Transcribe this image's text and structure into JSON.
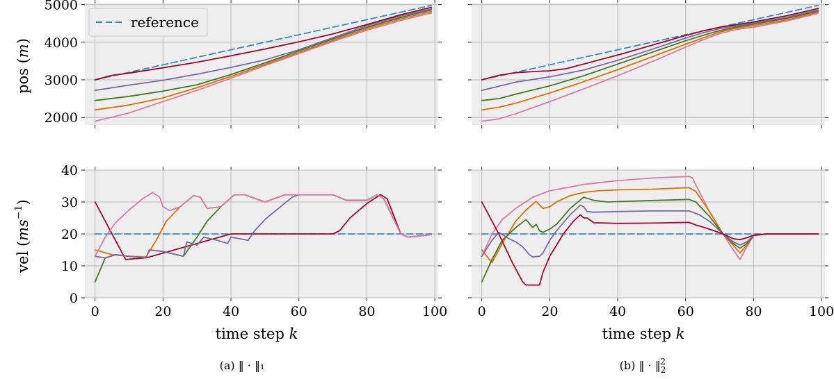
{
  "colors": {
    "panel_bg": "#eeeeee",
    "grid": "#b9b9b9",
    "reference": "#348abd",
    "purple": "#7a68a6",
    "green": "#467821",
    "orange": "#e07000",
    "pink": "#d77ba8",
    "red": "#a60628"
  },
  "legend": {
    "entry": "reference"
  },
  "captions": {
    "a": "(a) ‖ · ‖₁",
    "b": "(b) ‖ · ‖²₂"
  },
  "chart_data": [
    {
      "id": "a-pos",
      "type": "line",
      "panel": "top-left",
      "title": "",
      "xlabel": "",
      "ylabel": "pos (m)",
      "xlim": [
        -3,
        101
      ],
      "ylim": [
        1800,
        5050
      ],
      "xticks": [
        0,
        20,
        40,
        60,
        80,
        100
      ],
      "xticklabels": [],
      "yticks": [
        2000,
        3000,
        4000,
        5000
      ],
      "yticklabels": [
        "2000",
        "3000",
        "4000",
        "5000"
      ],
      "grid": true,
      "legend": "top-left",
      "series": [
        {
          "name": "reference",
          "color": "reference",
          "dashed": true,
          "x": [
            0,
            99
          ],
          "y": [
            3000,
            4980
          ]
        },
        {
          "color": "pink",
          "x": [
            0,
            10,
            20,
            30,
            40,
            50,
            60,
            70,
            80,
            90,
            99
          ],
          "y": [
            1900,
            2120,
            2420,
            2720,
            3040,
            3380,
            3700,
            4020,
            4320,
            4580,
            4780
          ]
        },
        {
          "color": "orange",
          "x": [
            0,
            10,
            20,
            30,
            40,
            50,
            60,
            70,
            80,
            90,
            99
          ],
          "y": [
            2200,
            2330,
            2520,
            2790,
            3090,
            3410,
            3730,
            4050,
            4360,
            4620,
            4820
          ]
        },
        {
          "color": "green",
          "x": [
            0,
            10,
            20,
            30,
            40,
            50,
            60,
            70,
            80,
            90,
            99
          ],
          "y": [
            2450,
            2560,
            2700,
            2870,
            3140,
            3450,
            3770,
            4090,
            4400,
            4660,
            4860
          ]
        },
        {
          "color": "purple",
          "x": [
            0,
            10,
            20,
            30,
            40,
            50,
            60,
            70,
            80,
            90,
            99
          ],
          "y": [
            2720,
            2860,
            2990,
            3150,
            3330,
            3530,
            3800,
            4120,
            4440,
            4700,
            4890
          ]
        },
        {
          "color": "red",
          "x": [
            0,
            5,
            10,
            20,
            30,
            40,
            50,
            60,
            70,
            80,
            90,
            99
          ],
          "y": [
            3000,
            3120,
            3180,
            3320,
            3470,
            3640,
            3820,
            4010,
            4220,
            4470,
            4730,
            4930
          ]
        }
      ]
    },
    {
      "id": "b-pos",
      "type": "line",
      "panel": "top-right",
      "title": "",
      "xlabel": "",
      "ylabel": "",
      "xlim": [
        -3,
        101
      ],
      "ylim": [
        1800,
        5050
      ],
      "xticks": [
        0,
        20,
        40,
        60,
        80,
        100
      ],
      "xticklabels": [],
      "yticks": [
        2000,
        3000,
        4000,
        5000
      ],
      "yticklabels": [],
      "grid": true,
      "series": [
        {
          "name": "reference",
          "color": "reference",
          "dashed": true,
          "x": [
            0,
            99
          ],
          "y": [
            3000,
            4980
          ]
        },
        {
          "color": "pink",
          "x": [
            0,
            5,
            10,
            20,
            30,
            40,
            50,
            60,
            65,
            70,
            75,
            80,
            90,
            99
          ],
          "y": [
            1900,
            1960,
            2100,
            2420,
            2760,
            3110,
            3480,
            3870,
            4060,
            4230,
            4340,
            4400,
            4570,
            4770
          ]
        },
        {
          "color": "orange",
          "x": [
            0,
            5,
            10,
            20,
            30,
            40,
            50,
            60,
            65,
            70,
            75,
            80,
            90,
            99
          ],
          "y": [
            2200,
            2270,
            2380,
            2650,
            2950,
            3270,
            3610,
            3950,
            4110,
            4270,
            4380,
            4440,
            4600,
            4800
          ]
        },
        {
          "color": "green",
          "x": [
            0,
            5,
            10,
            20,
            30,
            40,
            50,
            60,
            65,
            70,
            75,
            80,
            90,
            99
          ],
          "y": [
            2450,
            2500,
            2620,
            2840,
            3110,
            3420,
            3730,
            4040,
            4180,
            4310,
            4410,
            4480,
            4640,
            4830
          ]
        },
        {
          "color": "purple",
          "x": [
            0,
            5,
            10,
            15,
            20,
            30,
            40,
            50,
            60,
            65,
            70,
            75,
            80,
            90,
            99
          ],
          "y": [
            2720,
            2830,
            2940,
            3010,
            3080,
            3260,
            3520,
            3810,
            4110,
            4250,
            4360,
            4440,
            4510,
            4670,
            4860
          ]
        },
        {
          "color": "red",
          "x": [
            0,
            5,
            10,
            15,
            20,
            25,
            30,
            40,
            50,
            60,
            65,
            70,
            75,
            80,
            90,
            99
          ],
          "y": [
            3000,
            3120,
            3190,
            3220,
            3240,
            3300,
            3420,
            3660,
            3920,
            4180,
            4300,
            4400,
            4470,
            4540,
            4710,
            4900
          ]
        }
      ]
    },
    {
      "id": "a-vel",
      "type": "line",
      "panel": "bottom-left",
      "title": "",
      "xlabel": "time step k",
      "ylabel": "vel (ms⁻¹)",
      "xlim": [
        -3,
        101
      ],
      "ylim": [
        0,
        40
      ],
      "xticks": [
        0,
        20,
        40,
        60,
        80,
        100
      ],
      "xticklabels": [
        "0",
        "20",
        "40",
        "60",
        "80",
        "100"
      ],
      "yticks": [
        0,
        10,
        20,
        30,
        40
      ],
      "yticklabels": [
        "0",
        "10",
        "20",
        "30",
        "40"
      ],
      "grid": true,
      "series": [
        {
          "name": "reference",
          "color": "reference",
          "dashed": true,
          "x": [
            0,
            99
          ],
          "y": [
            20,
            20
          ]
        },
        {
          "color": "red",
          "x": [
            0,
            9,
            15,
            40,
            70,
            72,
            75,
            80,
            84,
            86,
            90,
            92,
            95,
            99
          ],
          "y": [
            30,
            12,
            12.5,
            20,
            20,
            21,
            25,
            29.5,
            32.3,
            31,
            20,
            19,
            19.3,
            19.8
          ]
        },
        {
          "color": "green",
          "x": [
            0,
            3,
            6,
            10,
            15,
            16,
            20,
            26,
            30,
            33,
            37,
            41,
            44,
            50,
            56,
            60,
            70,
            74,
            80,
            83,
            85,
            90,
            92,
            95,
            99
          ],
          "y": [
            5,
            12.5,
            13.5,
            13,
            12.5,
            15,
            14.5,
            13,
            19,
            24,
            28.5,
            32.3,
            32.3,
            30,
            32.3,
            32.3,
            32.3,
            30.5,
            30.5,
            32.3,
            31,
            20,
            19,
            19.3,
            19.8
          ]
        },
        {
          "color": "orange",
          "x": [
            0,
            5,
            10,
            15,
            18,
            21,
            25,
            29,
            31,
            33,
            37,
            41,
            44,
            50,
            56,
            60,
            70,
            74,
            80,
            83,
            85,
            90,
            92,
            95,
            99
          ],
          "y": [
            15,
            13.5,
            13,
            12.8,
            18,
            24,
            28.5,
            32,
            31.5,
            28,
            28.5,
            32.3,
            32.3,
            30,
            32.3,
            32.3,
            32.3,
            30.5,
            30.5,
            32.3,
            31,
            20,
            19,
            19.3,
            19.8
          ]
        },
        {
          "color": "purple",
          "x": [
            0,
            3,
            6,
            10,
            15,
            16,
            20,
            26,
            27,
            30,
            32,
            36,
            39,
            40,
            45,
            47,
            50,
            54,
            58,
            60,
            70,
            74,
            80,
            83,
            85,
            90,
            92,
            95,
            99
          ],
          "y": [
            13,
            12.5,
            13.5,
            13,
            12.5,
            15,
            14.5,
            13,
            17.5,
            16.5,
            19,
            18,
            17,
            19,
            18,
            21,
            24.5,
            28,
            31.5,
            32.3,
            32.3,
            30.5,
            30.5,
            32.3,
            31,
            20,
            19,
            19.3,
            19.8
          ]
        },
        {
          "color": "pink",
          "x": [
            0,
            3,
            6,
            10,
            14,
            17,
            19,
            20,
            22,
            25,
            29,
            31,
            33,
            37,
            41,
            44,
            50,
            56,
            60,
            70,
            74,
            80,
            83,
            85,
            90,
            92,
            95,
            99
          ],
          "y": [
            13,
            19,
            23.5,
            27.5,
            31,
            33,
            31.5,
            28.5,
            27.3,
            28.5,
            32,
            31.5,
            28,
            28.5,
            32.3,
            32.3,
            30,
            32.3,
            32.3,
            32.3,
            30.5,
            30.5,
            32.3,
            31,
            20,
            19,
            19.3,
            19.8
          ]
        }
      ]
    },
    {
      "id": "b-vel",
      "type": "line",
      "panel": "bottom-right",
      "title": "",
      "xlabel": "time step k",
      "ylabel": "",
      "xlim": [
        -3,
        101
      ],
      "ylim": [
        0,
        40
      ],
      "xticks": [
        0,
        20,
        40,
        60,
        80,
        100
      ],
      "xticklabels": [
        "0",
        "20",
        "40",
        "60",
        "80",
        "100"
      ],
      "yticks": [
        0,
        10,
        20,
        30,
        40
      ],
      "yticklabels": [],
      "grid": true,
      "series": [
        {
          "name": "reference",
          "color": "reference",
          "dashed": true,
          "x": [
            0,
            99
          ],
          "y": [
            20,
            20
          ]
        },
        {
          "color": "pink",
          "x": [
            0,
            3,
            6,
            10,
            15,
            20,
            30,
            40,
            50,
            61,
            62,
            67,
            71,
            74,
            76,
            78,
            80,
            84,
            99
          ],
          "y": [
            13,
            20,
            24.5,
            28,
            31.5,
            33.5,
            35.5,
            36.7,
            37.5,
            38,
            37.5,
            27,
            20,
            15,
            12,
            16,
            19.5,
            20,
            20
          ]
        },
        {
          "color": "orange",
          "x": [
            0,
            3,
            6,
            10,
            13,
            16,
            18,
            20,
            22,
            26,
            30,
            34,
            40,
            50,
            61,
            63,
            67,
            71,
            74,
            76,
            78,
            80,
            84,
            99
          ],
          "y": [
            15,
            11,
            17,
            24,
            27.5,
            30.2,
            28,
            28.5,
            30,
            32,
            33,
            33.5,
            33.8,
            34,
            34.5,
            33.3,
            27,
            20,
            16.5,
            14,
            16.5,
            19.5,
            20,
            20
          ]
        },
        {
          "color": "green",
          "x": [
            0,
            3,
            6,
            10,
            13,
            15,
            16,
            17,
            18,
            20,
            22,
            26,
            30,
            33,
            37,
            45,
            61,
            63,
            67,
            71,
            74,
            76,
            78,
            80,
            84,
            99
          ],
          "y": [
            5,
            12,
            18,
            22,
            24.5,
            22,
            23,
            21,
            20.5,
            21.5,
            23,
            28,
            31.5,
            30.5,
            30,
            30.3,
            30.8,
            30,
            25.5,
            20,
            17,
            15.5,
            17,
            19.5,
            20,
            20
          ]
        },
        {
          "color": "purple",
          "x": [
            0,
            3,
            5,
            8,
            10,
            12,
            14,
            15,
            17,
            18,
            20,
            22,
            26,
            29,
            30,
            31,
            33,
            40,
            50,
            61,
            64,
            67,
            71,
            74,
            76,
            78,
            80,
            84,
            99
          ],
          "y": [
            13,
            18,
            20.5,
            18.5,
            17.5,
            16,
            13.5,
            12.8,
            13,
            14,
            18,
            21,
            26,
            29,
            28.5,
            27,
            26.8,
            27,
            27.2,
            27.2,
            26,
            24,
            20,
            17.5,
            16.5,
            17.5,
            19.5,
            20,
            20
          ]
        },
        {
          "color": "red",
          "x": [
            0,
            5,
            9,
            12,
            13,
            15,
            17,
            18,
            20,
            24,
            27,
            29,
            30,
            31,
            33,
            40,
            50,
            61,
            63,
            67,
            71,
            74,
            76,
            78,
            80,
            84,
            99
          ],
          "y": [
            30,
            20,
            11,
            5,
            4,
            4,
            4,
            8,
            13,
            20,
            24,
            26,
            25,
            25,
            23.5,
            23.3,
            23.4,
            23.6,
            22.8,
            21.5,
            20,
            18.5,
            18.2,
            18.8,
            19.6,
            20,
            20
          ]
        }
      ]
    }
  ]
}
